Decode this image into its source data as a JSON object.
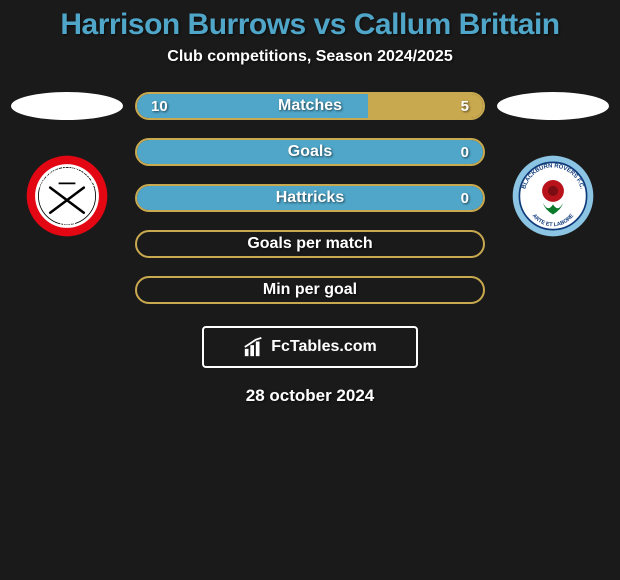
{
  "background_color": "#1a1a1a",
  "title": {
    "text": "Harrison Burrows vs Callum Brittain",
    "color": "#4fa6c9",
    "fontsize": 30
  },
  "subtitle": {
    "text": "Club competitions, Season 2024/2025",
    "color": "#ffffff",
    "fontsize": 16
  },
  "left_club": {
    "name": "Sheffield United",
    "colors": {
      "outer": "#e30613",
      "inner": "#ffffff",
      "accent": "#000000"
    },
    "year": "1889"
  },
  "right_club": {
    "name": "Blackburn Rovers",
    "colors": {
      "outer": "#8cc5e3",
      "inner": "#ffffff",
      "accent": "#0f3b7a",
      "rose": "#b8121b",
      "leaf": "#0a7a2a"
    },
    "motto": "ARTE ET LABORE"
  },
  "bars": {
    "label_fontsize": 16,
    "value_fontsize": 15,
    "border_radius": 14,
    "height": 28,
    "items": [
      {
        "label": "Matches",
        "left_value": "10",
        "right_value": "5",
        "left_pct": 66.7,
        "fill_left": "#4fa6c9",
        "fill_right": "#c9a94f",
        "border_color": "#c9a94f"
      },
      {
        "label": "Goals",
        "left_value": "",
        "right_value": "0",
        "left_pct": 100,
        "fill_left": "#4fa6c9",
        "fill_right": "#c9a94f",
        "border_color": "#c9a94f"
      },
      {
        "label": "Hattricks",
        "left_value": "",
        "right_value": "0",
        "left_pct": 100,
        "fill_left": "#4fa6c9",
        "fill_right": "#c9a94f",
        "border_color": "#c9a94f"
      },
      {
        "label": "Goals per match",
        "left_value": "",
        "right_value": "",
        "left_pct": 0,
        "fill_left": "#4fa6c9",
        "fill_right": "transparent",
        "border_color": "#c9a94f"
      },
      {
        "label": "Min per goal",
        "left_value": "",
        "right_value": "",
        "left_pct": 0,
        "fill_left": "#4fa6c9",
        "fill_right": "transparent",
        "border_color": "#c9a94f"
      }
    ]
  },
  "footer": {
    "brand": "FcTables.com",
    "date": "28 october 2024",
    "date_fontsize": 17
  }
}
